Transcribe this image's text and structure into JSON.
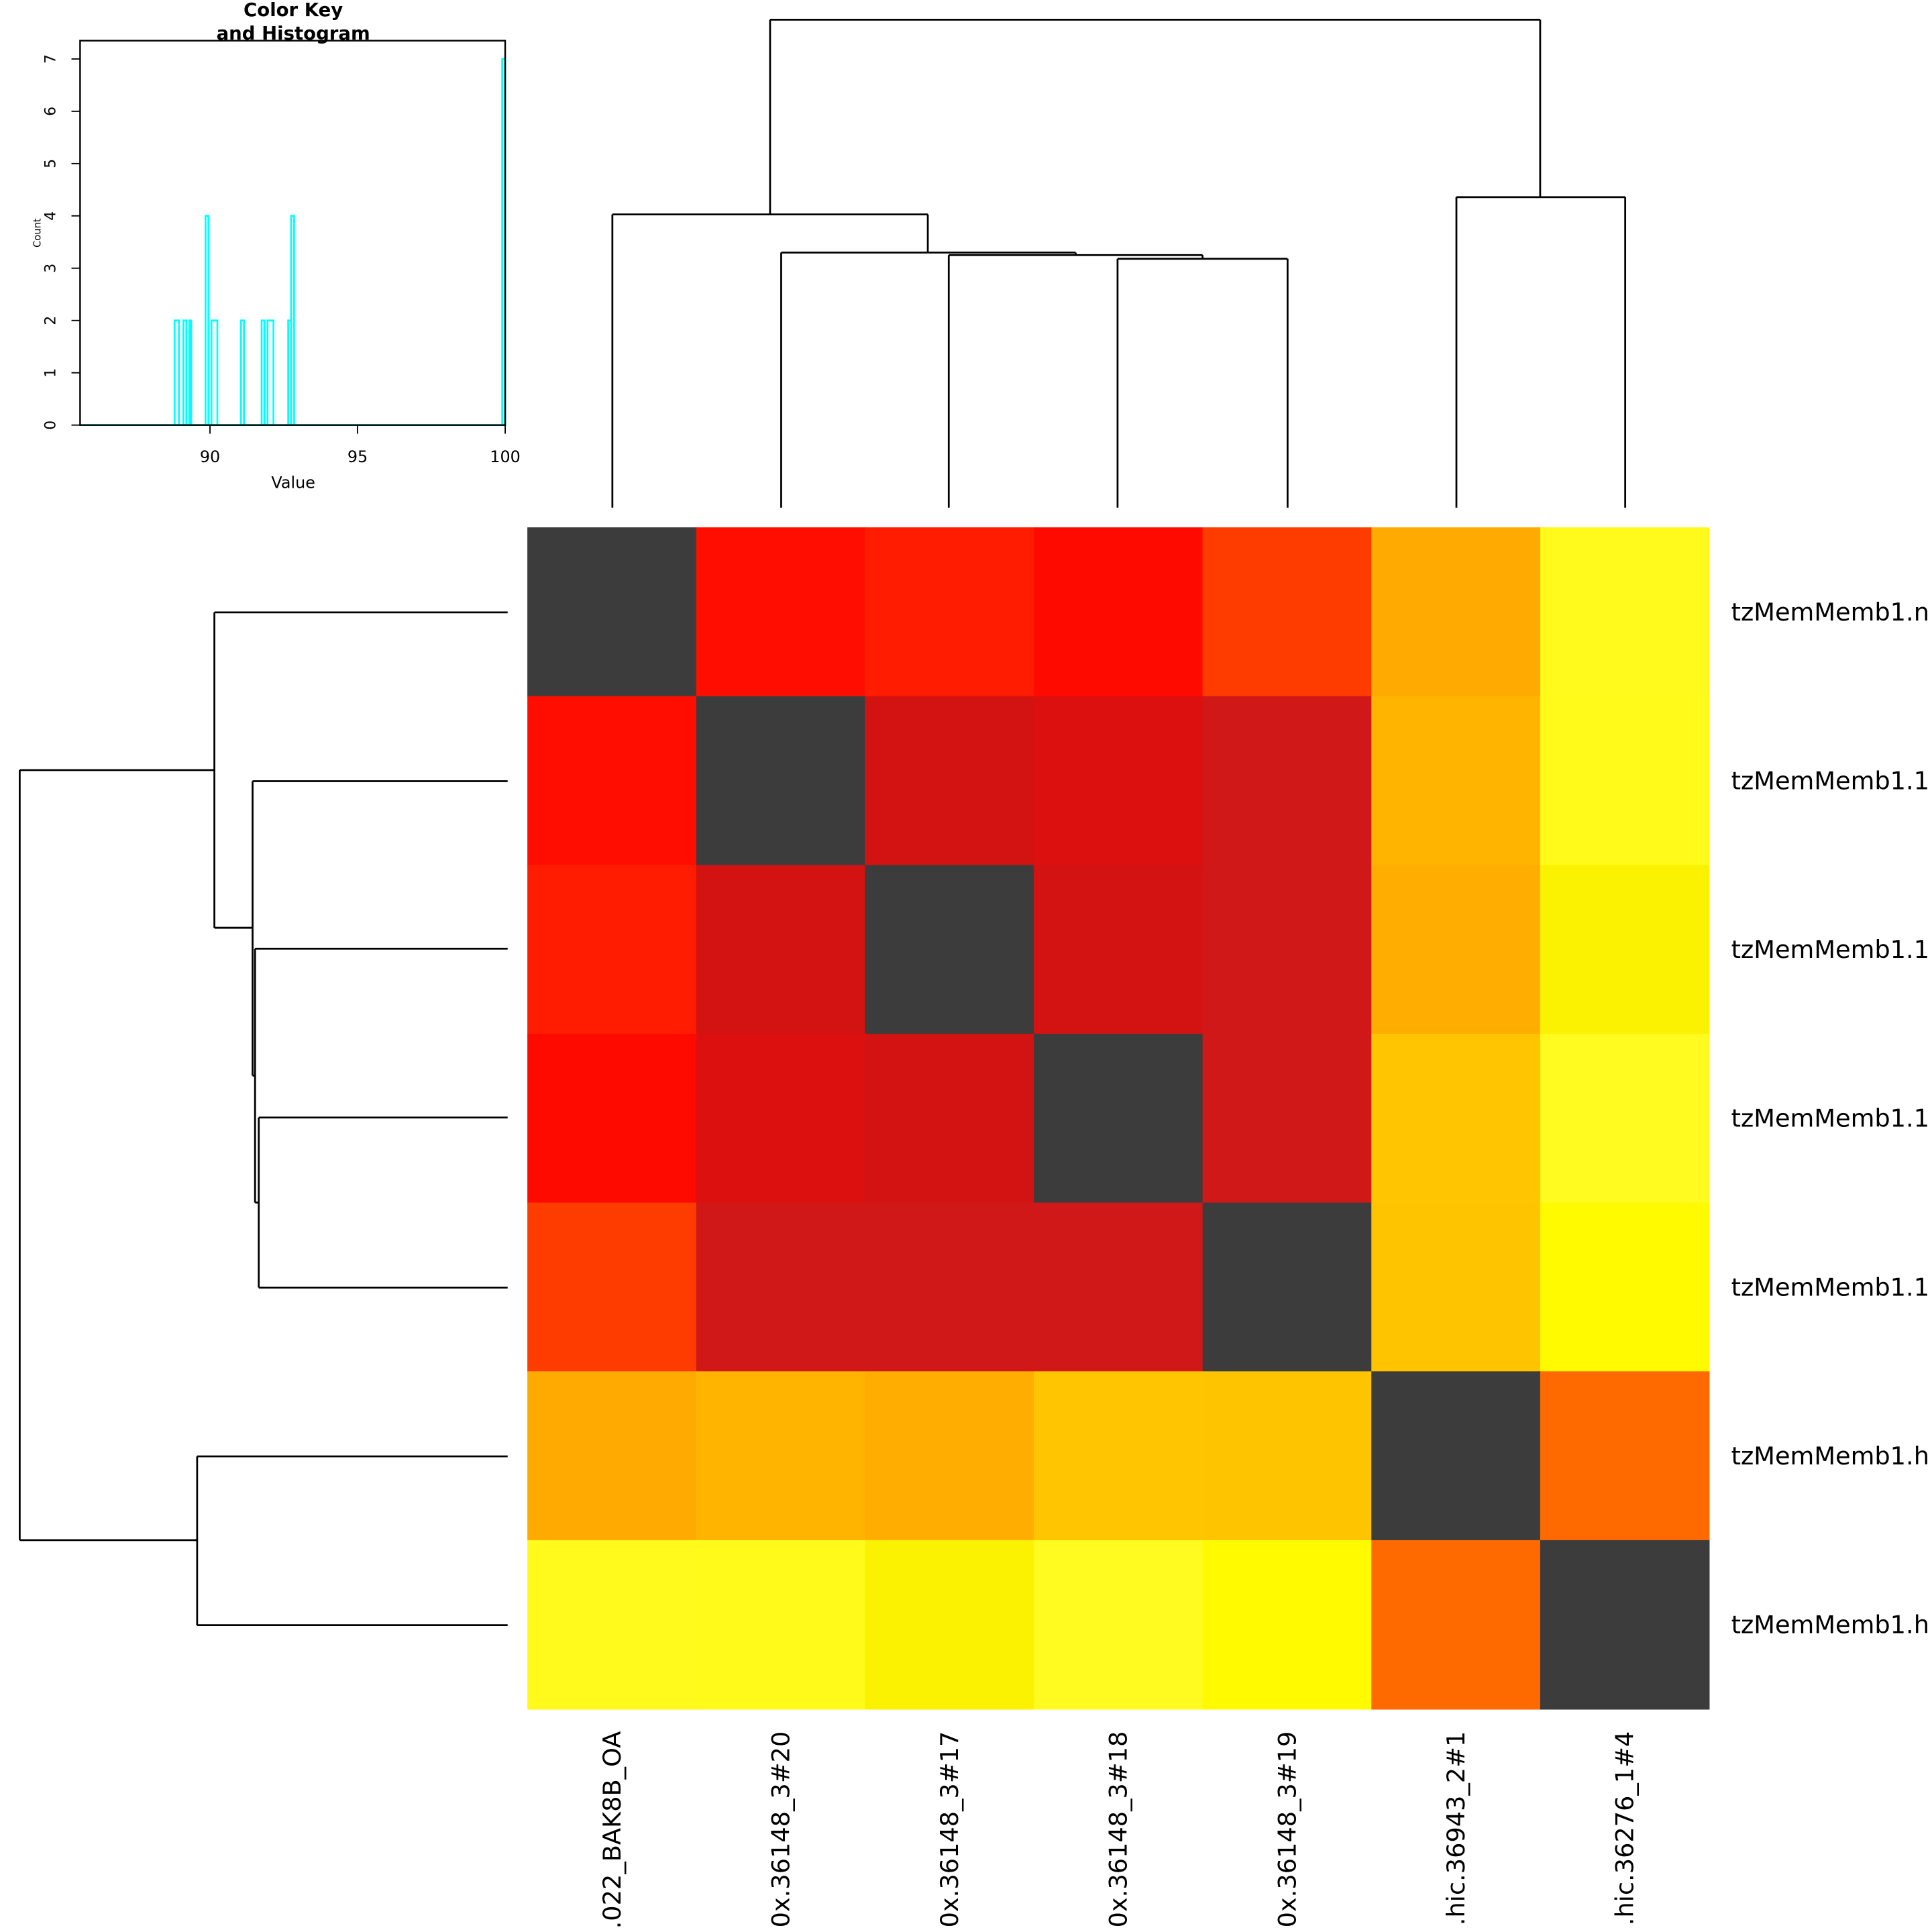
{
  "chart_data": [
    {
      "type": "heatmap",
      "columns": [
        ".022_BAK8B_OA",
        "0x.36148_3#20",
        "0x.36148_3#17",
        "0x.36148_3#18",
        "0x.36148_3#19",
        ".hic.36943_2#1",
        ".hic.36276_1#4"
      ],
      "rows": [
        "tzMemMemb1.n",
        "tzMemMemb1.1",
        "tzMemMemb1.1",
        "tzMemMemb1.1",
        "tzMemMemb1.1",
        "tzMemMemb1.h",
        "tzMemMemb1.h"
      ],
      "values": [
        [
          100,
          89.8,
          90.1,
          89.8,
          91.0,
          91.8,
          92.8
        ],
        [
          89.8,
          100,
          89.0,
          89.2,
          88.8,
          91.9,
          92.8
        ],
        [
          90.1,
          89.0,
          100,
          88.8,
          88.9,
          91.8,
          92.6
        ],
        [
          89.8,
          89.2,
          88.8,
          100,
          88.9,
          92.1,
          92.8
        ],
        [
          91.0,
          88.8,
          88.9,
          88.9,
          100,
          92.1,
          92.7
        ],
        [
          91.8,
          91.9,
          91.8,
          92.1,
          92.1,
          100,
          90.5
        ],
        [
          92.8,
          92.8,
          92.6,
          92.8,
          92.7,
          90.5,
          100
        ]
      ],
      "colors": [
        [
          "#3c3c3c",
          "#ff0e00",
          "#ff1c00",
          "#ff0a00",
          "#ff3c00",
          "#ffaa00",
          "#fffa1c"
        ],
        [
          "#ff0e00",
          "#3c3c3c",
          "#d31212",
          "#dd1010",
          "#d01818",
          "#ffb400",
          "#fffa1a"
        ],
        [
          "#ff1c00",
          "#d31212",
          "#3c3c3c",
          "#d31212",
          "#d01818",
          "#ffae00",
          "#faf200"
        ],
        [
          "#ff0a00",
          "#dd1010",
          "#d31212",
          "#3c3c3c",
          "#d01818",
          "#ffc600",
          "#fffa20"
        ],
        [
          "#ff3c00",
          "#d01818",
          "#d01818",
          "#d01818",
          "#3c3c3c",
          "#ffc400",
          "#fffa00"
        ],
        [
          "#ffaa00",
          "#ffb400",
          "#ffae00",
          "#ffc600",
          "#ffc400",
          "#3c3c3c",
          "#ff6a00"
        ],
        [
          "#fffa1c",
          "#fffa1a",
          "#faf200",
          "#fffa20",
          "#fffa00",
          "#ff6a00",
          "#3c3c3c"
        ]
      ]
    },
    {
      "type": "histogram",
      "title": [
        "Color Key",
        "and Histogram"
      ],
      "xlabel": "Value",
      "ylabel": "Count",
      "color": "#00ffff",
      "bins": [
        85.6,
        88.8,
        88.95,
        89.1,
        89.2,
        89.3,
        89.35,
        89.85,
        89.95,
        90.05,
        90.25,
        91.05,
        91.15,
        91.75,
        91.85,
        91.95,
        92.15,
        92.65,
        92.75,
        92.85,
        99.9,
        100
      ],
      "counts": [
        0,
        2,
        0,
        2,
        0,
        2,
        0,
        4,
        0,
        2,
        0,
        2,
        0,
        2,
        0,
        2,
        0,
        2,
        4,
        0,
        7
      ],
      "xlim": [
        85.6,
        100
      ],
      "ylim": [
        0,
        7.35
      ],
      "xticks": [
        90,
        95,
        100
      ],
      "yticks": [
        0,
        1,
        2,
        3,
        4,
        5,
        6,
        7
      ]
    }
  ]
}
